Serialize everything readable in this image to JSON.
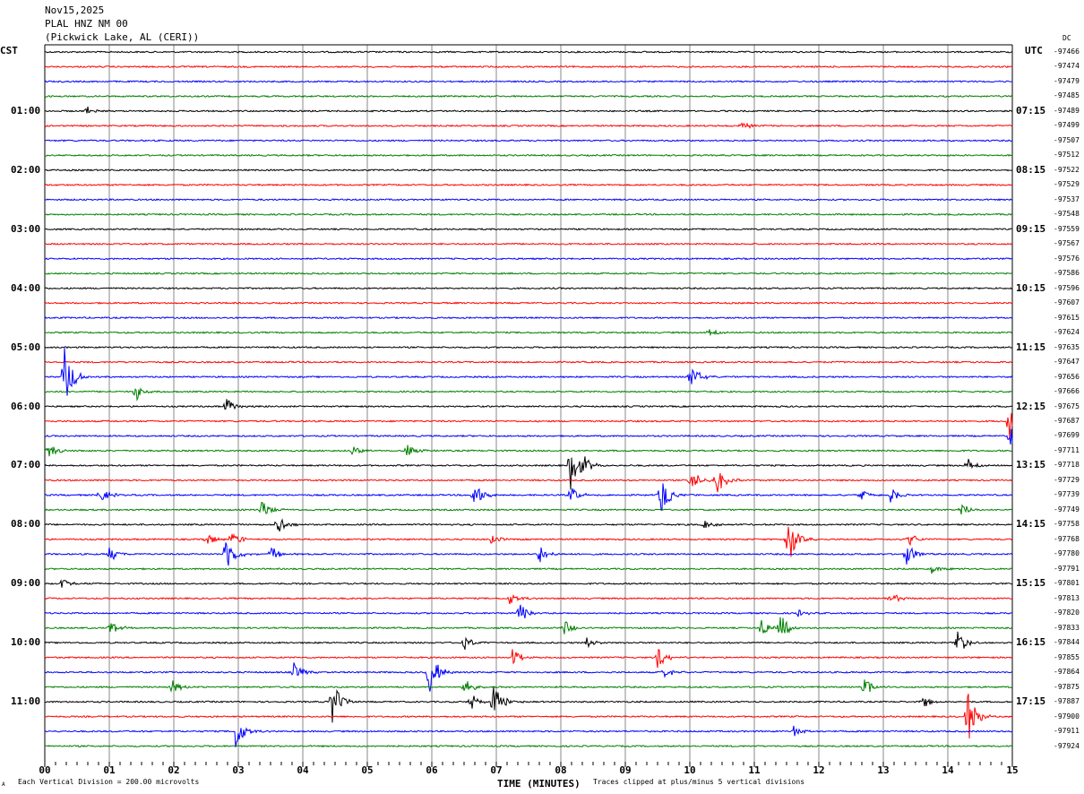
{
  "header": {
    "date": "Nov15,2025",
    "station": "PLAL HNZ NM 00",
    "location": "(Pickwick Lake, AL (CERI))"
  },
  "left_axis_title": "CST",
  "right_axis_title": "UTC",
  "dc_label": "DC",
  "footer": {
    "scale_note": "Each Vertical Division =  200.00 microvolts",
    "xlabel": "TIME (MINUTES)",
    "clip_note": "Traces clipped at plus/minus 5 vertical divisions",
    "corner_mark": "A"
  },
  "chart_data": {
    "type": "line",
    "title": "Nov15,2025 PLAL HNZ NM 00 (Pickwick Lake, AL (CERI))",
    "xlabel": "TIME (MINUTES)",
    "xlim": [
      0,
      15
    ],
    "x_ticks": [
      "00",
      "01",
      "02",
      "03",
      "04",
      "05",
      "06",
      "07",
      "08",
      "09",
      "10",
      "11",
      "12",
      "13",
      "14",
      "15"
    ],
    "trace_colors": [
      "#000000",
      "#ff0000",
      "#0000ff",
      "#007f00"
    ],
    "grid": true,
    "left_hour_labels": [
      "01:00",
      "02:00",
      "03:00",
      "04:00",
      "05:00",
      "06:00",
      "07:00",
      "08:00",
      "09:00",
      "10:00",
      "11:00"
    ],
    "right_hour_labels": [
      "07:15",
      "08:15",
      "09:15",
      "10:15",
      "11:15",
      "12:15",
      "13:15",
      "14:15",
      "15:15",
      "16:15",
      "17:15"
    ],
    "dc_offsets": [
      "-97466",
      "-97474",
      "-97479",
      "-97485",
      "-97489",
      "-97499",
      "-97507",
      "-97512",
      "-97522",
      "-97529",
      "-97537",
      "-97548",
      "-97559",
      "-97567",
      "-97576",
      "-97586",
      "-97596",
      "-97607",
      "-97615",
      "-97624",
      "-97635",
      "-97647",
      "-97656",
      "-97666",
      "-97675",
      "-97687",
      "-97699",
      "-97711",
      "-97718",
      "-97729",
      "-97739",
      "-97749",
      "-97758",
      "-97768",
      "-97780",
      "-97791",
      "-97801",
      "-97813",
      "-97820",
      "-97833",
      "-97844",
      "-97855",
      "-97864",
      "-97875",
      "-97887",
      "-97900",
      "-97911",
      "-97924"
    ],
    "events": [
      {
        "trace": 4,
        "minute": 0.65,
        "amp": 0.4
      },
      {
        "trace": 5,
        "minute": 10.8,
        "amp": 0.3
      },
      {
        "trace": 19,
        "minute": 10.3,
        "amp": 0.4
      },
      {
        "trace": 22,
        "minute": 0.3,
        "amp": 2.2
      },
      {
        "trace": 22,
        "minute": 10.0,
        "amp": 1.0
      },
      {
        "trace": 23,
        "minute": 1.4,
        "amp": 0.7
      },
      {
        "trace": 24,
        "minute": 2.8,
        "amp": 0.7
      },
      {
        "trace": 25,
        "minute": 14.95,
        "amp": 1.3
      },
      {
        "trace": 26,
        "minute": 14.97,
        "amp": 0.8
      },
      {
        "trace": 27,
        "minute": 0.05,
        "amp": 0.6
      },
      {
        "trace": 27,
        "minute": 4.75,
        "amp": 0.5
      },
      {
        "trace": 27,
        "minute": 5.6,
        "amp": 0.6
      },
      {
        "trace": 28,
        "minute": 8.15,
        "amp": 2.0
      },
      {
        "trace": 28,
        "minute": 8.35,
        "amp": 0.6
      },
      {
        "trace": 28,
        "minute": 14.3,
        "amp": 0.6
      },
      {
        "trace": 29,
        "minute": 10.0,
        "amp": 1.0
      },
      {
        "trace": 29,
        "minute": 10.4,
        "amp": 1.2
      },
      {
        "trace": 30,
        "minute": 0.85,
        "amp": 0.6
      },
      {
        "trace": 30,
        "minute": 6.65,
        "amp": 1.0
      },
      {
        "trace": 30,
        "minute": 8.15,
        "amp": 0.6
      },
      {
        "trace": 30,
        "minute": 9.55,
        "amp": 1.4
      },
      {
        "trace": 30,
        "minute": 12.65,
        "amp": 0.4
      },
      {
        "trace": 30,
        "minute": 13.1,
        "amp": 0.6
      },
      {
        "trace": 31,
        "minute": 3.35,
        "amp": 0.9
      },
      {
        "trace": 31,
        "minute": 14.2,
        "amp": 0.5
      },
      {
        "trace": 32,
        "minute": 3.6,
        "amp": 0.8
      },
      {
        "trace": 32,
        "minute": 10.2,
        "amp": 0.4
      },
      {
        "trace": 33,
        "minute": 2.5,
        "amp": 0.5
      },
      {
        "trace": 33,
        "minute": 2.9,
        "amp": 0.6
      },
      {
        "trace": 33,
        "minute": 6.9,
        "amp": 0.4
      },
      {
        "trace": 33,
        "minute": 11.5,
        "amp": 2.2
      },
      {
        "trace": 33,
        "minute": 13.4,
        "amp": 0.5
      },
      {
        "trace": 34,
        "minute": 1.0,
        "amp": 0.6
      },
      {
        "trace": 34,
        "minute": 2.8,
        "amp": 1.5
      },
      {
        "trace": 34,
        "minute": 3.5,
        "amp": 0.6
      },
      {
        "trace": 34,
        "minute": 7.65,
        "amp": 0.8
      },
      {
        "trace": 34,
        "minute": 13.35,
        "amp": 0.9
      },
      {
        "trace": 35,
        "minute": 13.75,
        "amp": 0.3
      },
      {
        "trace": 36,
        "minute": 0.25,
        "amp": 0.4
      },
      {
        "trace": 37,
        "minute": 7.2,
        "amp": 0.5
      },
      {
        "trace": 37,
        "minute": 13.1,
        "amp": 0.5
      },
      {
        "trace": 38,
        "minute": 7.35,
        "amp": 0.9
      },
      {
        "trace": 38,
        "minute": 11.65,
        "amp": 0.3
      },
      {
        "trace": 39,
        "minute": 1.0,
        "amp": 0.6
      },
      {
        "trace": 39,
        "minute": 8.05,
        "amp": 0.6
      },
      {
        "trace": 39,
        "minute": 11.1,
        "amp": 0.8
      },
      {
        "trace": 39,
        "minute": 11.4,
        "amp": 1.0
      },
      {
        "trace": 40,
        "minute": 6.5,
        "amp": 0.6
      },
      {
        "trace": 40,
        "minute": 8.4,
        "amp": 0.4
      },
      {
        "trace": 40,
        "minute": 14.15,
        "amp": 1.0
      },
      {
        "trace": 41,
        "minute": 7.25,
        "amp": 0.6
      },
      {
        "trace": 41,
        "minute": 9.5,
        "amp": 0.8
      },
      {
        "trace": 42,
        "minute": 3.85,
        "amp": 0.7
      },
      {
        "trace": 42,
        "minute": 5.95,
        "amp": 2.0
      },
      {
        "trace": 42,
        "minute": 9.6,
        "amp": 0.4
      },
      {
        "trace": 43,
        "minute": 1.95,
        "amp": 0.6
      },
      {
        "trace": 43,
        "minute": 6.5,
        "amp": 0.6
      },
      {
        "trace": 43,
        "minute": 12.7,
        "amp": 0.7
      },
      {
        "trace": 44,
        "minute": 4.45,
        "amp": 1.6
      },
      {
        "trace": 44,
        "minute": 6.6,
        "amp": 0.7
      },
      {
        "trace": 44,
        "minute": 6.95,
        "amp": 1.5
      },
      {
        "trace": 44,
        "minute": 13.6,
        "amp": 0.5
      },
      {
        "trace": 45,
        "minute": 14.3,
        "amp": 2.0
      },
      {
        "trace": 46,
        "minute": 2.95,
        "amp": 1.4
      },
      {
        "trace": 46,
        "minute": 11.6,
        "amp": 0.4
      }
    ]
  }
}
